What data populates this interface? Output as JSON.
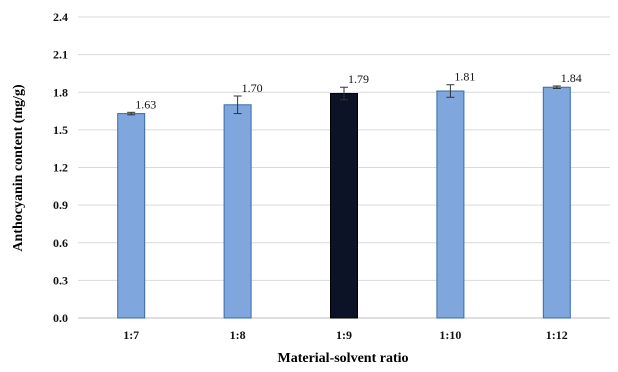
{
  "chart_data": {
    "type": "bar",
    "title": "",
    "xlabel": "Material-solvent ratio",
    "ylabel": "Anthocyanin content (mg/g)",
    "ylim": [
      0,
      2.4
    ],
    "yticks": [
      "0.0",
      "0.3",
      "0.6",
      "0.9",
      "1.2",
      "1.5",
      "1.8",
      "2.1",
      "2.4"
    ],
    "categories": [
      "1:7",
      "1:8",
      "1:9",
      "1:10",
      "1:12"
    ],
    "values": [
      1.63,
      1.7,
      1.79,
      1.81,
      1.84
    ],
    "data_labels": [
      "1.63",
      "1.70",
      "1.79",
      "1.81",
      "1.84"
    ],
    "errors": [
      0.01,
      0.07,
      0.05,
      0.05,
      0.01
    ],
    "highlight_index": 2,
    "grid": true,
    "legend": "none",
    "colors": {
      "bar": "#7fa7dd",
      "bar_highlight": "#0d1326",
      "bar_edge": "#3a6aa8"
    }
  }
}
